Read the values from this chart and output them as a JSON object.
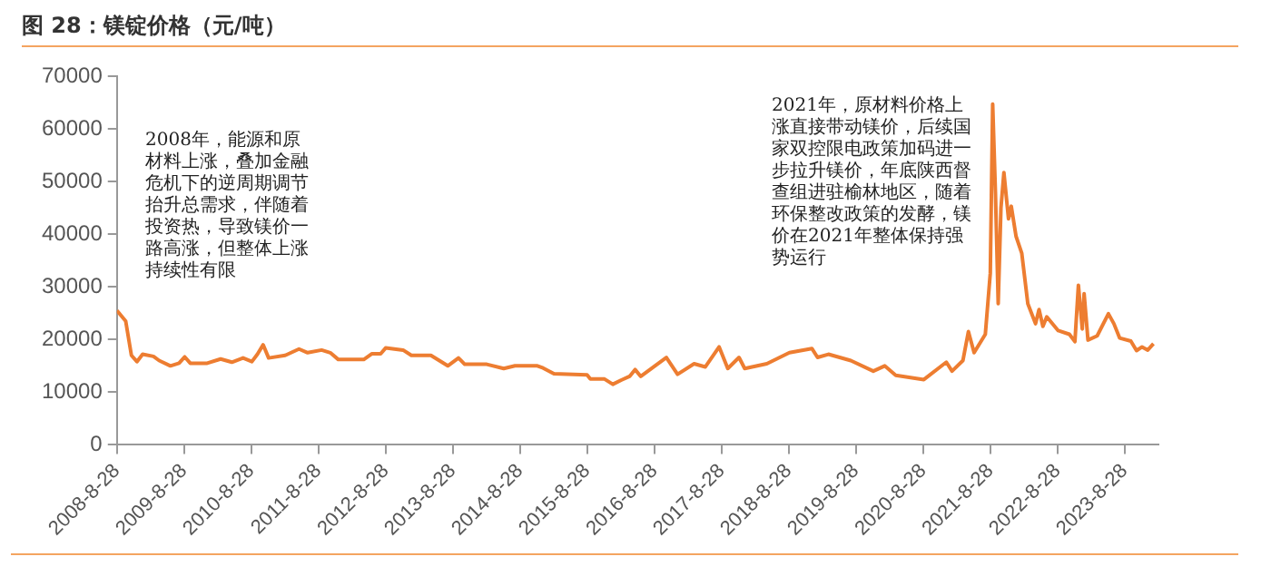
{
  "chart_data": {
    "type": "line",
    "title": "图 28：镁锭价格（元/吨）",
    "annotations": [
      "2008年，能源和原材料上涨，叠加金融危机下的逆周期调节抬升总需求，伴随着投资热，导致镁价一路高涨，但整体上涨持续性有限",
      "2021年，原材料价格上涨直接带动镁价，后续国家双控限电政策加码进一步拉升镁价，年底陕西督查组进驻榆林地区，随着环保整改政策的发酵，镁价在2021年整体保持强势运行"
    ],
    "x": [
      "2008-08-28",
      "2008-10-15",
      "2008-11-15",
      "2008-12-15",
      "2009-01-15",
      "2009-03-15",
      "2009-04-15",
      "2009-06-15",
      "2009-08-01",
      "2009-09-01",
      "2009-10-01",
      "2010-01-01",
      "2010-03-15",
      "2010-05-15",
      "2010-07-15",
      "2010-09-01",
      "2010-10-01",
      "2010-11-01",
      "2010-12-01",
      "2011-03-01",
      "2011-05-15",
      "2011-07-01",
      "2011-09-15",
      "2011-11-01",
      "2011-12-15",
      "2012-05-01",
      "2012-06-15",
      "2012-08-01",
      "2012-08-28",
      "2012-12-01",
      "2013-01-15",
      "2013-05-01",
      "2013-08-01",
      "2013-09-28",
      "2013-11-01",
      "2014-03-01",
      "2014-06-01",
      "2014-08-01",
      "2014-12-01",
      "2015-01-01",
      "2015-03-01",
      "2015-08-28",
      "2015-09-15",
      "2015-12-01",
      "2016-01-15",
      "2016-03-01",
      "2016-04-15",
      "2016-05-15",
      "2016-06-15",
      "2016-11-01",
      "2017-01-01",
      "2017-04-01",
      "2017-06-01",
      "2017-08-15",
      "2017-10-01",
      "2017-12-01",
      "2018-01-01",
      "2018-05-01",
      "2018-09-01",
      "2019-01-01",
      "2019-02-01",
      "2019-04-01",
      "2019-08-01",
      "2019-12-01",
      "2020-02-01",
      "2020-04-01",
      "2020-09-01",
      "2021-01-01",
      "2021-02-01",
      "2021-04-01",
      "2021-05-01",
      "2021-06-01",
      "2021-08-01",
      "2021-08-28",
      "2021-09-10",
      "2021-09-25",
      "2021-10-10",
      "2021-10-25",
      "2021-11-10",
      "2021-12-05",
      "2021-12-20",
      "2022-01-15",
      "2022-02-15",
      "2022-03-20",
      "2022-05-01",
      "2022-05-20",
      "2022-06-10",
      "2022-07-01",
      "2022-09-01",
      "2022-11-01",
      "2022-12-01",
      "2022-12-20",
      "2023-01-10",
      "2023-01-20",
      "2023-02-10",
      "2023-04-01",
      "2023-06-01",
      "2023-07-01",
      "2023-08-01",
      "2023-10-01",
      "2023-11-01",
      "2023-12-01",
      "2024-01-01",
      "2024-02-01"
    ],
    "series": [
      {
        "color": "#ed7d31",
        "values": [
          25500,
          23500,
          17000,
          15800,
          17200,
          16800,
          16000,
          15000,
          15500,
          16700,
          15500,
          15500,
          16300,
          15700,
          16500,
          15800,
          17200,
          19000,
          16500,
          17000,
          18200,
          17500,
          18000,
          17500,
          16200,
          16200,
          17300,
          17300,
          18400,
          18000,
          17000,
          17000,
          15000,
          16500,
          15300,
          15300,
          14500,
          15000,
          15000,
          14600,
          13500,
          13300,
          12500,
          12500,
          11500,
          12300,
          13000,
          14300,
          13000,
          16600,
          13400,
          15400,
          14800,
          18600,
          14500,
          16600,
          14500,
          15400,
          17500,
          18300,
          16600,
          17200,
          16000,
          14000,
          15000,
          13200,
          12400,
          15700,
          14000,
          16000,
          21500,
          17500,
          21000,
          32600,
          64700,
          47900,
          26800,
          45000,
          51700,
          42900,
          45300,
          39600,
          36400,
          26800,
          23000,
          25700,
          22500,
          24300,
          21700,
          21000,
          19600,
          30300,
          22000,
          28700,
          19900,
          20700,
          24900,
          23000,
          20300,
          19700,
          17900,
          18600,
          18000,
          19200
        ]
      }
    ],
    "xlim": [
      "2008-08-28",
      "2024-02-28"
    ],
    "xticks": [
      {
        "value": "2008-08-28",
        "label": "2008-8-28"
      },
      {
        "value": "2009-08-28",
        "label": "2009-8-28"
      },
      {
        "value": "2010-08-28",
        "label": "2010-8-28"
      },
      {
        "value": "2011-08-28",
        "label": "2011-8-28"
      },
      {
        "value": "2012-08-28",
        "label": "2012-8-28"
      },
      {
        "value": "2013-08-28",
        "label": "2013-8-28"
      },
      {
        "value": "2014-08-28",
        "label": "2014-8-28"
      },
      {
        "value": "2015-08-28",
        "label": "2015-8-28"
      },
      {
        "value": "2016-08-28",
        "label": "2016-8-28"
      },
      {
        "value": "2017-08-28",
        "label": "2017-8-28"
      },
      {
        "value": "2018-08-28",
        "label": "2018-8-28"
      },
      {
        "value": "2019-08-28",
        "label": "2019-8-28"
      },
      {
        "value": "2020-08-28",
        "label": "2020-8-28"
      },
      {
        "value": "2021-08-28",
        "label": "2021-8-28"
      },
      {
        "value": "2022-08-28",
        "label": "2022-8-28"
      },
      {
        "value": "2023-08-28",
        "label": "2023-8-28"
      }
    ],
    "ylim": [
      0,
      70000
    ],
    "yticks": [
      0,
      10000,
      20000,
      30000,
      40000,
      50000,
      60000,
      70000
    ],
    "grid": false,
    "legend": false,
    "marker": "none",
    "line_style": "solid"
  }
}
